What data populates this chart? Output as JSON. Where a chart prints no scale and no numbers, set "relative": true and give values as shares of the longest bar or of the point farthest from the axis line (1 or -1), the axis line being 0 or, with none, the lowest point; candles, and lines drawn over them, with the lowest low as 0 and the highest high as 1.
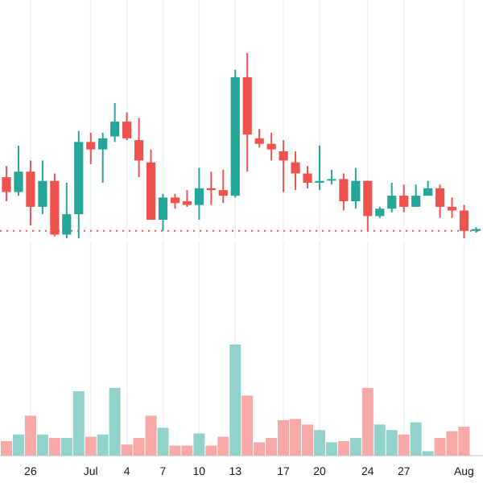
{
  "chart_data": [
    {
      "type": "candlestick",
      "relative": true,
      "grid": "x",
      "tick_labels": false,
      "categories": [
        null,
        null,
        null,
        null,
        null,
        null,
        null,
        null,
        null,
        null,
        null,
        null,
        null,
        null,
        null,
        null,
        null,
        null,
        null,
        null,
        null,
        null,
        null,
        null,
        null,
        null,
        null,
        null,
        null,
        null,
        null,
        null,
        null,
        null,
        null,
        null,
        null,
        null,
        null,
        null
      ],
      "ohlc": [
        [
          0.33,
          0.39,
          0.2,
          0.25
        ],
        [
          0.25,
          0.5,
          0.23,
          0.36
        ],
        [
          0.36,
          0.42,
          0.07,
          0.17
        ],
        [
          0.17,
          0.42,
          0.13,
          0.31
        ],
        [
          0.31,
          0.35,
          0.01,
          0.02
        ],
        [
          0.02,
          0.3,
          0,
          0.13
        ],
        [
          0.13,
          0.58,
          0,
          0.52
        ],
        [
          0.52,
          0.57,
          0.4,
          0.48
        ],
        [
          0.48,
          0.57,
          0.3,
          0.54
        ],
        [
          0.55,
          0.73,
          0.52,
          0.63
        ],
        [
          0.63,
          0.68,
          0.53,
          0.54
        ],
        [
          0.53,
          0.65,
          0.33,
          0.42
        ],
        [
          0.41,
          0.48,
          0.1,
          0.1
        ],
        [
          0.1,
          0.24,
          0.04,
          0.22
        ],
        [
          0.22,
          0.24,
          0.16,
          0.19
        ],
        [
          0.2,
          0.26,
          0.17,
          0.18
        ],
        [
          0.18,
          0.38,
          0.1,
          0.27
        ],
        [
          0.27,
          0.36,
          0.18,
          0.26
        ],
        [
          0.26,
          0.37,
          0.19,
          0.23
        ],
        [
          0.23,
          0.91,
          0.22,
          0.87
        ],
        [
          0.87,
          1,
          0.36,
          0.56
        ],
        [
          0.54,
          0.59,
          0.49,
          0.51
        ],
        [
          0.51,
          0.57,
          0.42,
          0.48
        ],
        [
          0.47,
          0.53,
          0.25,
          0.42
        ],
        [
          0.41,
          0.47,
          0.26,
          0.35
        ],
        [
          0.35,
          0.39,
          0.27,
          0.3
        ],
        [
          0.3,
          0.5,
          0.26,
          0.31
        ],
        [
          0.32,
          0.37,
          0.29,
          0.32
        ],
        [
          0.32,
          0.35,
          0.15,
          0.2
        ],
        [
          0.2,
          0.38,
          0.16,
          0.31
        ],
        [
          0.31,
          0.31,
          0.04,
          0.12
        ],
        [
          0.12,
          0.17,
          0.11,
          0.16
        ],
        [
          0.16,
          0.3,
          0.14,
          0.23
        ],
        [
          0.23,
          0.29,
          0.14,
          0.17
        ],
        [
          0.17,
          0.29,
          0.17,
          0.23
        ],
        [
          0.23,
          0.31,
          0.23,
          0.27
        ],
        [
          0.27,
          0.29,
          0.11,
          0.17
        ],
        [
          0.17,
          0.22,
          0.11,
          0.15
        ],
        [
          0.15,
          0.18,
          0,
          0.04
        ],
        [
          0.04,
          0.06,
          0.03,
          0.05
        ]
      ],
      "colors": [
        "#ef5350",
        "#26a69a",
        "#ef5350",
        "#26a69a",
        "#ef5350",
        "#26a69a",
        "#26a69a",
        "#ef5350",
        "#26a69a",
        "#26a69a",
        "#ef5350",
        "#ef5350",
        "#ef5350",
        "#26a69a",
        "#ef5350",
        "#ef5350",
        "#26a69a",
        "#ef5350",
        "#ef5350",
        "#26a69a",
        "#ef5350",
        "#ef5350",
        "#ef5350",
        "#ef5350",
        "#ef5350",
        "#ef5350",
        "#26a69a",
        "#26a69a",
        "#ef5350",
        "#26a69a",
        "#ef5350",
        "#26a69a",
        "#26a69a",
        "#ef5350",
        "#26a69a",
        "#26a69a",
        "#ef5350",
        "#ef5350",
        "#ef5350",
        "#26a69a"
      ],
      "ref_lines": [
        {
          "axis": "y",
          "value": 0.04,
          "color": "#ef5350",
          "line_style": "dotted"
        }
      ]
    },
    {
      "type": "bar",
      "relative": true,
      "grid": "x",
      "categories": [
        null,
        null,
        "26",
        null,
        null,
        null,
        null,
        "Jul",
        null,
        null,
        "4",
        null,
        null,
        "7",
        null,
        null,
        "10",
        null,
        null,
        "13",
        null,
        null,
        null,
        "17",
        null,
        null,
        "20",
        null,
        null,
        null,
        "24",
        null,
        null,
        "27",
        null,
        null,
        null,
        null,
        "Aug",
        null
      ],
      "values": [
        0.13,
        0.19,
        0.36,
        0.19,
        0.16,
        0.16,
        0.58,
        0.17,
        0.19,
        0.61,
        0.1,
        0.16,
        0.36,
        0.25,
        0.09,
        0.09,
        0.2,
        0.09,
        0.17,
        1,
        0.54,
        0.12,
        0.16,
        0.32,
        0.33,
        0.28,
        0.23,
        0.12,
        0.13,
        0.16,
        0.61,
        0.28,
        0.23,
        0.19,
        0.3,
        0.04,
        0.16,
        0.22,
        0.26,
        null
      ],
      "colors": [
        "#f7a9a7",
        "#92d2cc",
        "#f7a9a7",
        "#92d2cc",
        "#f7a9a7",
        "#92d2cc",
        "#92d2cc",
        "#f7a9a7",
        "#92d2cc",
        "#92d2cc",
        "#f7a9a7",
        "#f7a9a7",
        "#f7a9a7",
        "#92d2cc",
        "#f7a9a7",
        "#f7a9a7",
        "#92d2cc",
        "#f7a9a7",
        "#f7a9a7",
        "#92d2cc",
        "#f7a9a7",
        "#f7a9a7",
        "#f7a9a7",
        "#f7a9a7",
        "#f7a9a7",
        "#f7a9a7",
        "#92d2cc",
        "#92d2cc",
        "#f7a9a7",
        "#92d2cc",
        "#f7a9a7",
        "#92d2cc",
        "#92d2cc",
        "#f7a9a7",
        "#92d2cc",
        "#92d2cc",
        "#f7a9a7",
        "#f7a9a7",
        "#f7a9a7",
        null
      ]
    }
  ]
}
